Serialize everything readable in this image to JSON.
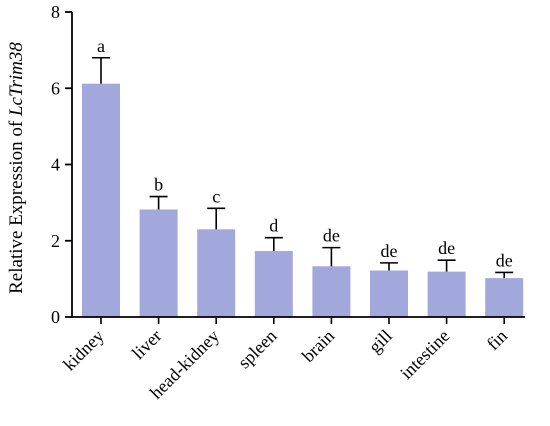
{
  "chart_data": {
    "type": "bar",
    "categories": [
      "kidney",
      "liver",
      "head-kidney",
      "spleen",
      "brain",
      "gill",
      "intestine",
      "fin"
    ],
    "values": [
      6.12,
      2.82,
      2.3,
      1.73,
      1.33,
      1.22,
      1.19,
      1.02
    ],
    "errors": [
      0.68,
      0.34,
      0.55,
      0.35,
      0.49,
      0.2,
      0.3,
      0.15
    ],
    "significance": [
      "a",
      "b",
      "c",
      "d",
      "de",
      "de",
      "de",
      "de"
    ],
    "ylabel_prefix": "Relative Expression of ",
    "ylabel_gene": "LcTrim38",
    "ylim": [
      0,
      8
    ],
    "yticks": [
      0,
      2,
      4,
      6,
      8
    ],
    "bar_color": "#a3a8dc",
    "axis_color": "#000000"
  }
}
